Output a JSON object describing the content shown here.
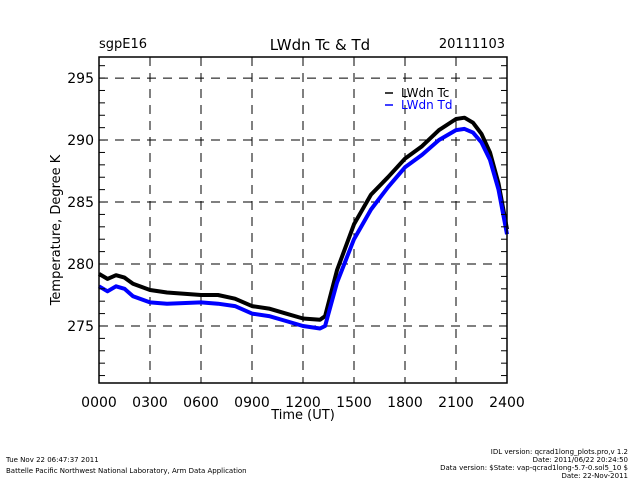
{
  "header": {
    "site": "sgpE16",
    "title": "LWdn Tc & Td",
    "date": "20111103"
  },
  "footer": {
    "timestamp": "Tue Nov 22 06:47:37 2011",
    "org": "Battelle Pacific Northwest National Laboratory, Arm Data Application",
    "idl_version": "IDL version: qcrad1long_plots.pro,v 1.2",
    "idl_date": "Date: 2011/06/22 20:24:50",
    "data_version": "Data version: $State: vap-qcrad1long-5.7-0.sol5_10 $",
    "data_date": "Date: 22-Nov-2011"
  },
  "colors": {
    "tc": "#000000",
    "td": "#0000ff"
  },
  "chart_data": {
    "type": "line",
    "title": "LWdn Tc & Td",
    "xlabel": "Time (UT)",
    "ylabel": "Temperature, Degree K",
    "xlim": [
      0,
      24
    ],
    "ylim": [
      270.4,
      296.7
    ],
    "grid": true,
    "legend_position": "top-right",
    "x_ticks": [
      0,
      3,
      6,
      9,
      12,
      15,
      18,
      21,
      24
    ],
    "x_tick_labels": [
      "0000",
      "0300",
      "0600",
      "0900",
      "1200",
      "1500",
      "1800",
      "2100",
      "2400"
    ],
    "y_ticks": [
      275,
      280,
      285,
      290,
      295
    ],
    "y_tick_labels": [
      "275",
      "280",
      "285",
      "290",
      "295"
    ],
    "x": [
      0,
      0.5,
      1,
      1.5,
      2,
      3,
      4,
      6,
      7,
      8,
      9,
      10,
      11,
      12,
      13,
      13.3,
      14,
      15,
      16,
      17,
      18,
      19,
      20,
      21,
      21.5,
      22,
      22.5,
      23,
      23.5,
      24
    ],
    "series": [
      {
        "name": "LWdn Tc",
        "color": "#000000",
        "values": [
          279.2,
          278.8,
          279.1,
          278.9,
          278.4,
          277.9,
          277.7,
          277.5,
          277.5,
          277.2,
          276.6,
          276.4,
          276.0,
          275.6,
          275.5,
          275.8,
          279.5,
          283.2,
          285.6,
          287.0,
          288.5,
          289.5,
          290.8,
          291.7,
          291.8,
          291.4,
          290.5,
          289.0,
          286.5,
          282.8
        ]
      },
      {
        "name": "LWdn Td",
        "color": "#0000ff",
        "values": [
          278.2,
          277.8,
          278.2,
          278.0,
          277.4,
          276.9,
          276.8,
          276.9,
          276.8,
          276.6,
          276.0,
          275.8,
          275.4,
          275.0,
          274.8,
          275.0,
          278.5,
          282.0,
          284.4,
          286.2,
          287.8,
          288.8,
          290.0,
          290.8,
          290.9,
          290.6,
          289.8,
          288.4,
          286.0,
          282.4
        ]
      }
    ]
  }
}
